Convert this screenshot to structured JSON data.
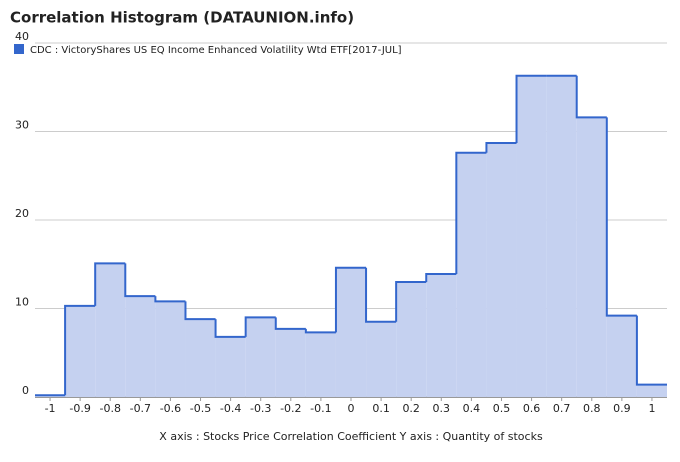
{
  "chart_data": {
    "type": "histogram",
    "title": "Correlation Histogram (DATAUNION.info)",
    "series_name": "CDC : VictoryShares US EQ Income Enhanced Volatility Wtd ETF[2017-JUL]",
    "x_label": "X axis : Stocks Price Correlation Coefficient  Y axis : Quantity of stocks",
    "color": "#3366cc",
    "fill": "#c5d1f0",
    "bins": [
      -1.05,
      -0.95,
      -0.85,
      -0.75,
      -0.65,
      -0.55,
      -0.45,
      -0.35,
      -0.25,
      -0.15,
      -0.05,
      0.05,
      0.15,
      0.25,
      0.35,
      0.45,
      0.55,
      0.65,
      0.75,
      0.85,
      0.95,
      1.05
    ],
    "values": [
      0.2,
      10.3,
      15.1,
      11.4,
      10.8,
      8.8,
      6.8,
      9.0,
      7.7,
      7.3,
      14.6,
      8.5,
      13.0,
      13.9,
      27.6,
      28.7,
      36.3,
      36.3,
      31.6,
      9.2,
      1.4
    ],
    "xlim": [
      -1.05,
      1.05
    ],
    "xticks": [
      -1,
      -0.9,
      -0.8,
      -0.7,
      -0.6,
      -0.5,
      -0.4,
      -0.3,
      -0.2,
      -0.1,
      0,
      0.1,
      0.2,
      0.3,
      0.4,
      0.5,
      0.6,
      0.7,
      0.8,
      0.9,
      1
    ],
    "ylim": [
      0,
      40
    ],
    "yticks": [
      0,
      10,
      20,
      30,
      40
    ],
    "grid": true
  }
}
